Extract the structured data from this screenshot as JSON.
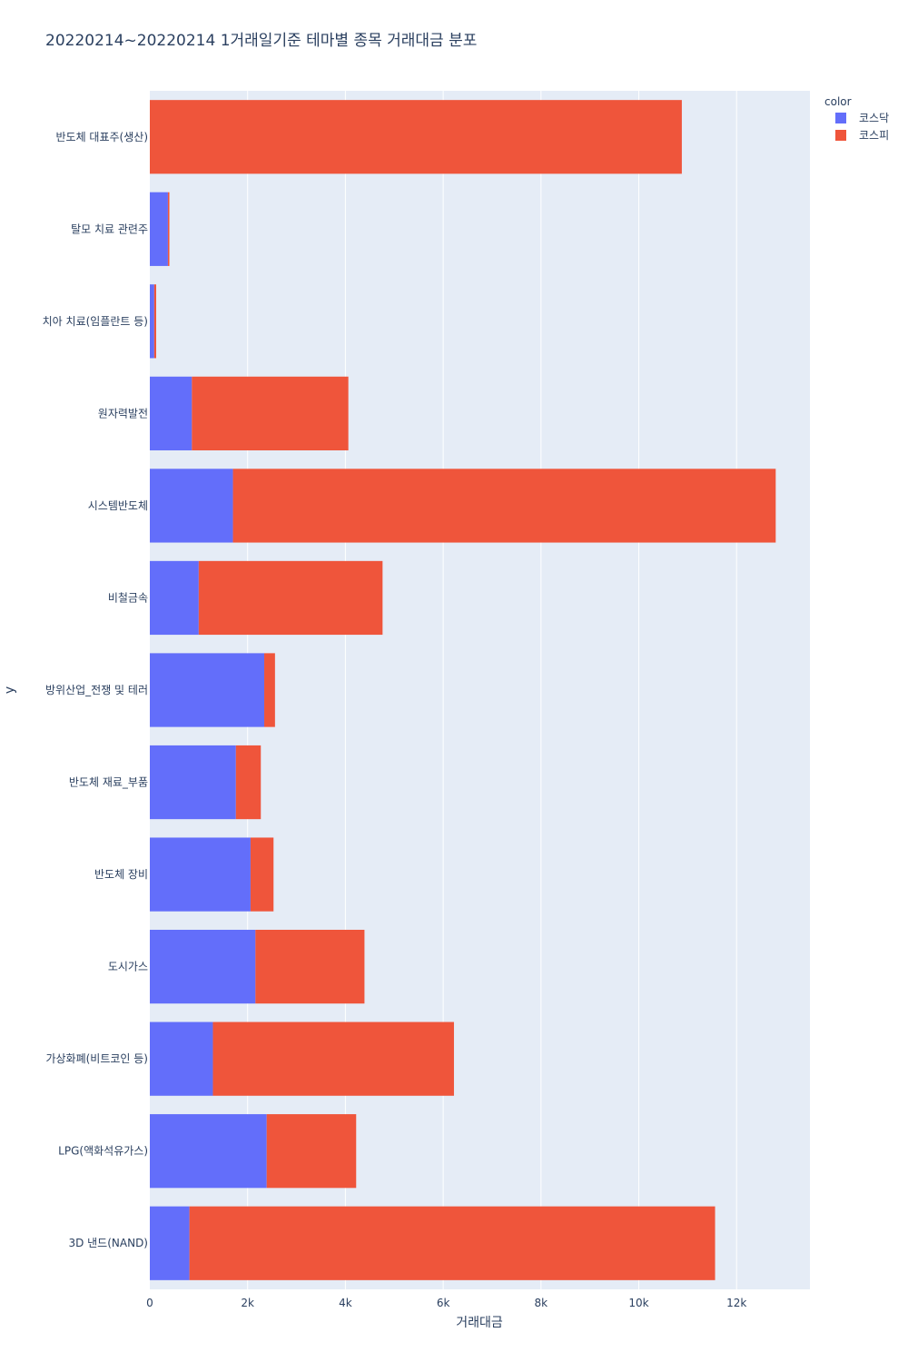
{
  "chart_data": {
    "type": "bar",
    "orientation": "horizontal",
    "barmode": "stack",
    "title": "20220214~20220214 1거래일기준 테마별 종목 거래대금 분포",
    "xlabel": "거래대금",
    "ylabel": "y",
    "xlim": [
      0,
      13500
    ],
    "x_ticks": [
      0,
      2000,
      4000,
      6000,
      8000,
      10000,
      12000
    ],
    "x_tick_labels": [
      "0",
      "2k",
      "4k",
      "6k",
      "8k",
      "10k",
      "12k"
    ],
    "grid": true,
    "legend_title": "color",
    "legend_position": "top-right",
    "categories": [
      "반도체 대표주(생산)",
      "탈모 치료 관련주",
      "치아 치료(임플란트 등)",
      "원자력발전",
      "시스템반도체",
      "비철금속",
      "방위산업_전쟁 및 테러",
      "반도체 재료_부품",
      "반도체 장비",
      "도시가스",
      "가상화폐(비트코인 등)",
      "LPG(액화석유가스)",
      "3D 낸드(NAND)"
    ],
    "series": [
      {
        "name": "코스닥",
        "color": "#636efa",
        "values": [
          0,
          370,
          90,
          860,
          1700,
          1000,
          2340,
          1760,
          2060,
          2160,
          1290,
          2390,
          810
        ]
      },
      {
        "name": "코스피",
        "color": "#ef553b",
        "values": [
          10880,
          30,
          40,
          3200,
          11100,
          3760,
          220,
          510,
          470,
          2230,
          4930,
          1830,
          10750
        ]
      }
    ]
  }
}
